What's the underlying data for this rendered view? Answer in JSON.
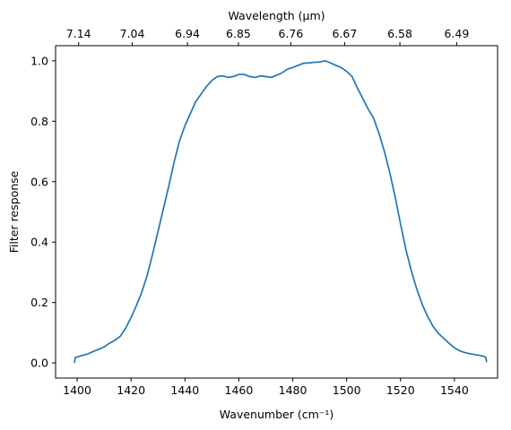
{
  "chart_data": {
    "type": "line",
    "xlabel": "Wavenumber (cm⁻¹)",
    "ylabel": "Filter response",
    "top_xlabel": "Wavelength (μm)",
    "xlim": [
      1392,
      1556
    ],
    "ylim": [
      -0.05,
      1.05
    ],
    "x_ticks": [
      1400,
      1420,
      1440,
      1460,
      1480,
      1500,
      1520,
      1540
    ],
    "y_ticks": [
      0.0,
      0.2,
      0.4,
      0.6,
      0.8,
      1.0
    ],
    "y_tick_labels": [
      "0.0",
      "0.2",
      "0.4",
      "0.6",
      "0.8",
      "1.0"
    ],
    "top_ticks": [
      {
        "wavenumber": 1400.56,
        "label": "7.14"
      },
      {
        "wavenumber": 1420.45,
        "label": "7.04"
      },
      {
        "wavenumber": 1440.92,
        "label": "6.94"
      },
      {
        "wavenumber": 1459.85,
        "label": "6.85"
      },
      {
        "wavenumber": 1479.29,
        "label": "6.76"
      },
      {
        "wavenumber": 1499.25,
        "label": "6.67"
      },
      {
        "wavenumber": 1519.76,
        "label": "6.58"
      },
      {
        "wavenumber": 1540.83,
        "label": "6.49"
      }
    ],
    "grid": false,
    "series": [
      {
        "color": "#1f77b4",
        "x": [
          1399.0,
          1399.3,
          1402,
          1404,
          1406,
          1408,
          1410,
          1412,
          1414,
          1416,
          1418,
          1420,
          1422,
          1424,
          1426,
          1428,
          1430,
          1432,
          1434,
          1436,
          1438,
          1440,
          1442,
          1444,
          1446,
          1448,
          1450,
          1452,
          1454,
          1456,
          1458,
          1460,
          1462,
          1464,
          1466,
          1468,
          1470,
          1472,
          1474,
          1476,
          1478,
          1480,
          1482,
          1484,
          1486,
          1488,
          1490,
          1492,
          1494,
          1496,
          1498,
          1500,
          1502,
          1504,
          1506,
          1508,
          1510,
          1512,
          1514,
          1516,
          1518,
          1520,
          1522,
          1524,
          1526,
          1528,
          1530,
          1532,
          1534,
          1536,
          1538,
          1540,
          1542,
          1544,
          1546,
          1548,
          1550,
          1551.5,
          1552
        ],
        "y": [
          0.0,
          0.018,
          0.025,
          0.03,
          0.038,
          0.045,
          0.053,
          0.065,
          0.075,
          0.088,
          0.115,
          0.15,
          0.19,
          0.235,
          0.29,
          0.36,
          0.435,
          0.51,
          0.585,
          0.665,
          0.735,
          0.785,
          0.825,
          0.865,
          0.89,
          0.915,
          0.935,
          0.948,
          0.95,
          0.945,
          0.948,
          0.955,
          0.955,
          0.948,
          0.945,
          0.95,
          0.948,
          0.945,
          0.952,
          0.96,
          0.972,
          0.978,
          0.985,
          0.992,
          0.993,
          0.995,
          0.996,
          1.0,
          0.993,
          0.985,
          0.978,
          0.965,
          0.948,
          0.91,
          0.875,
          0.84,
          0.81,
          0.76,
          0.7,
          0.63,
          0.55,
          0.46,
          0.375,
          0.305,
          0.245,
          0.195,
          0.155,
          0.122,
          0.098,
          0.082,
          0.065,
          0.05,
          0.04,
          0.034,
          0.03,
          0.027,
          0.024,
          0.02,
          0.002
        ]
      }
    ]
  }
}
